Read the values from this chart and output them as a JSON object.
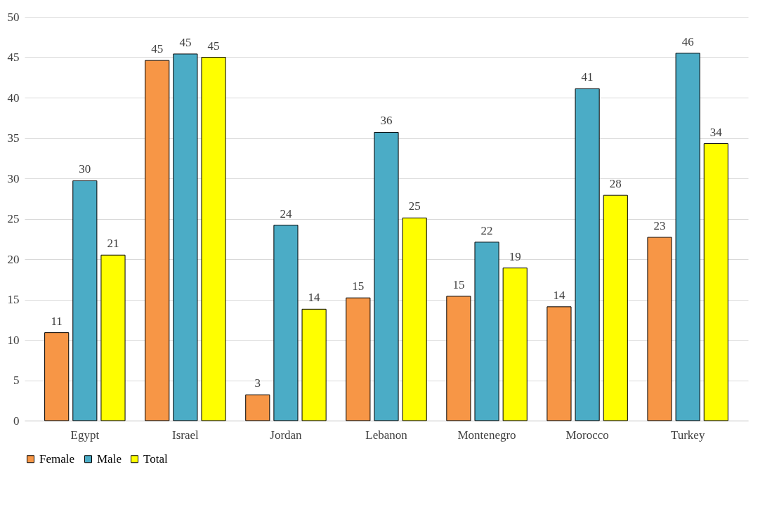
{
  "chart_data": {
    "type": "bar",
    "categories": [
      "Egypt",
      "Israel",
      "Jordan",
      "Lebanon",
      "Montenegro",
      "Morocco",
      "Turkey"
    ],
    "series": [
      {
        "name": "Female",
        "color": "#f79646",
        "values": [
          10.9,
          44.6,
          3.2,
          15.2,
          15.4,
          14.1,
          22.7
        ],
        "value_labels": [
          "11",
          "45",
          "3",
          "15",
          "15",
          "14",
          "23"
        ]
      },
      {
        "name": "Male",
        "color": "#4bacc6",
        "values": [
          29.7,
          45.4,
          24.2,
          35.7,
          22.1,
          41.1,
          45.5
        ],
        "value_labels": [
          "30",
          "45",
          "24",
          "36",
          "22",
          "41",
          "46"
        ]
      },
      {
        "name": "Total",
        "color": "#ffff00",
        "values": [
          20.5,
          45.0,
          13.8,
          25.1,
          18.9,
          27.9,
          34.3
        ],
        "value_labels": [
          "21",
          "45",
          "14",
          "25",
          "19",
          "28",
          "34"
        ]
      }
    ],
    "ylim": [
      0,
      50
    ],
    "yticks": [
      0,
      5,
      10,
      15,
      20,
      25,
      30,
      35,
      40,
      45,
      50
    ],
    "grid": "y",
    "legend": "bottom"
  }
}
